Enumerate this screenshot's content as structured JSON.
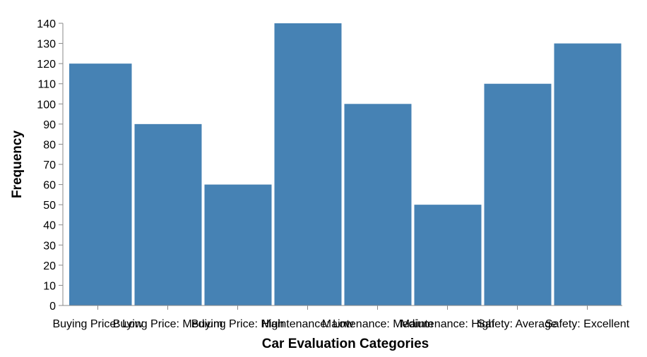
{
  "chart_data": {
    "type": "bar",
    "categories": [
      "Buying Price: Low",
      "Buying Price: Medium",
      "Buying Price: High",
      "Maintenance: Low",
      "Maintenance: Medium",
      "Maintenance: High",
      "Safety: Average",
      "Safety: Excellent"
    ],
    "values": [
      120,
      90,
      60,
      140,
      100,
      50,
      110,
      130
    ],
    "xlabel": "Car Evaluation Categories",
    "ylabel": "Frequency",
    "ylim": [
      0,
      140
    ],
    "yticks": [
      0,
      10,
      20,
      30,
      40,
      50,
      60,
      70,
      80,
      90,
      100,
      110,
      120,
      130,
      140
    ],
    "bar_color": "#4682b4",
    "grid": false
  }
}
